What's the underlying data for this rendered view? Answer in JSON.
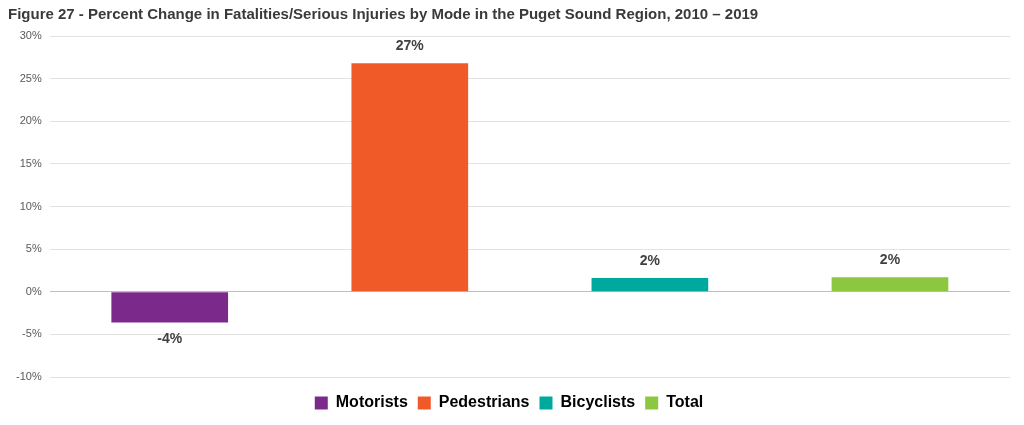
{
  "chart_data": {
    "type": "bar",
    "title": "Figure 27 - Percent Change in Fatalities/Serious Injuries by Mode in the Puget Sound Region, 2010 – 2019",
    "categories": [
      "Motorists",
      "Pedestrians",
      "Bicyclists",
      "Total"
    ],
    "values": [
      -3.6,
      26.8,
      1.6,
      1.7
    ],
    "value_labels": [
      "-4%",
      "27%",
      "2%",
      "2%"
    ],
    "colors": [
      "#7b2a8c",
      "#f05a28",
      "#00a99d",
      "#8dc63f"
    ],
    "ylim": [
      -10,
      30
    ],
    "yticks": [
      {
        "value": -10,
        "label": "-10%"
      },
      {
        "value": -5,
        "label": "-5%"
      },
      {
        "value": 0,
        "label": "0%"
      },
      {
        "value": 5,
        "label": "5%"
      },
      {
        "value": 10,
        "label": "10%"
      },
      {
        "value": 15,
        "label": "15%"
      },
      {
        "value": 20,
        "label": "20%"
      },
      {
        "value": 25,
        "label": "25%"
      },
      {
        "value": 30,
        "label": "30%"
      }
    ],
    "grid": true,
    "legend": "bottom",
    "data_labels": true,
    "tick_labels": "y"
  }
}
